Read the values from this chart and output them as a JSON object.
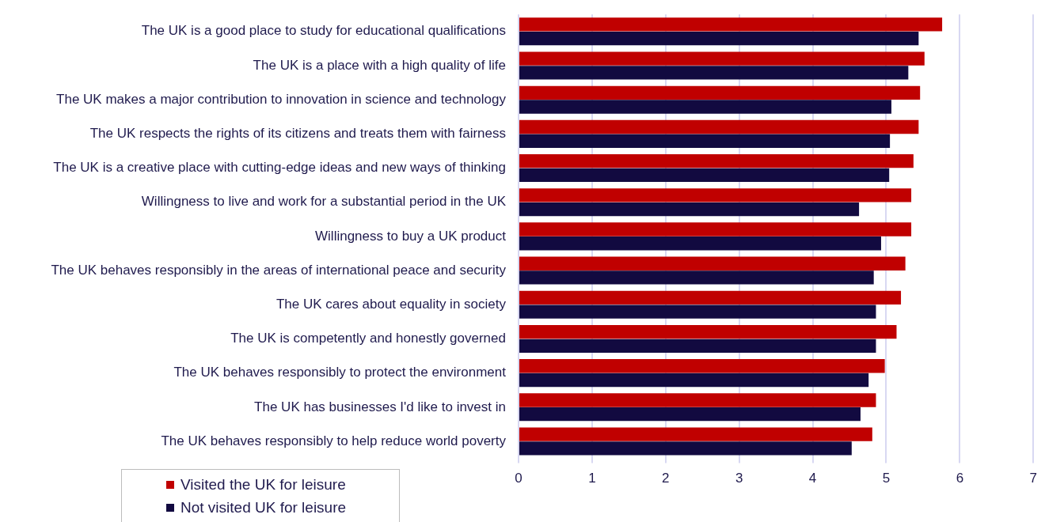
{
  "chart_data": {
    "type": "bar",
    "orientation": "horizontal",
    "categories": [
      "The UK is a good place to study for educational qualifications",
      "The UK is a place with a high quality of life",
      "The UK makes a major contribution to innovation in science and technology",
      "The UK respects the rights of its citizens and treats them with fairness",
      "The UK is a creative place with cutting-edge ideas and new ways of thinking",
      "Willingness to live and work for a substantial period in the UK",
      "Willingness to buy a UK product",
      "The UK behaves responsibly in the areas of international peace and security",
      "The UK cares about equality in society",
      "The UK is competently and honestly governed",
      "The UK behaves responsibly to protect the environment",
      "The UK has businesses I'd like to invest in",
      "The UK behaves responsibly to help reduce world poverty"
    ],
    "series": [
      {
        "name": "Visited the UK for leisure",
        "color": "#c00000",
        "values": [
          5.76,
          5.52,
          5.46,
          5.44,
          5.37,
          5.34,
          5.34,
          5.26,
          5.2,
          5.14,
          4.98,
          4.86,
          4.81
        ]
      },
      {
        "name": "Not visited UK for leisure",
        "color": "#120a40",
        "values": [
          5.44,
          5.3,
          5.07,
          5.05,
          5.04,
          4.63,
          4.93,
          4.83,
          4.86,
          4.86,
          4.76,
          4.65,
          4.53
        ]
      }
    ],
    "xlim": [
      0,
      7
    ],
    "xticks": [
      0,
      1,
      2,
      3,
      4,
      5,
      6,
      7
    ],
    "grid": "x",
    "legend": "bottom left"
  }
}
